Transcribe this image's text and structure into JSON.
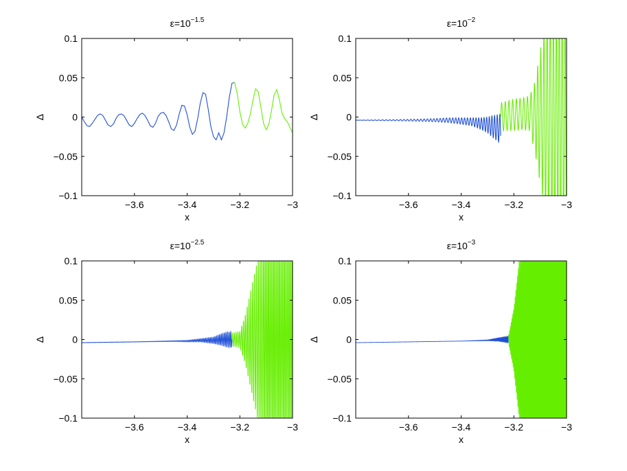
{
  "chart_data": [
    {
      "type": "line",
      "title": "ε=10",
      "title_exponent": "−1.5",
      "xlabel": "x",
      "ylabel": "Δ",
      "xlim": [
        -3.8,
        -3.0
      ],
      "ylim": [
        -0.1,
        0.1
      ],
      "x_ticks": [
        -3.6,
        -3.4,
        -3.2,
        -3.0
      ],
      "x_tick_labels": [
        "−3.6",
        "−3.4",
        "−3.2",
        "−3"
      ],
      "y_ticks": [
        -0.1,
        -0.05,
        0,
        0.05,
        0.1
      ],
      "y_tick_labels": [
        "−0.1",
        "−0.05",
        "0",
        "0.05",
        "0.1"
      ],
      "grid": false,
      "series": [
        {
          "color": "#1f4fd6",
          "x": [
            -3.8,
            -3.79,
            -3.78,
            -3.77,
            -3.76,
            -3.75,
            -3.74,
            -3.73,
            -3.72,
            -3.71,
            -3.7,
            -3.69,
            -3.68,
            -3.67,
            -3.66,
            -3.65,
            -3.64,
            -3.63,
            -3.62,
            -3.61,
            -3.6,
            -3.59,
            -3.58,
            -3.57,
            -3.56,
            -3.55,
            -3.54,
            -3.53,
            -3.52,
            -3.51,
            -3.5,
            -3.49,
            -3.48,
            -3.47,
            -3.46,
            -3.45,
            -3.44,
            -3.43,
            -3.42,
            -3.41,
            -3.4,
            -3.39,
            -3.38,
            -3.37,
            -3.36,
            -3.35,
            -3.34,
            -3.33,
            -3.32,
            -3.31,
            -3.3,
            -3.29,
            -3.28,
            -3.27,
            -3.26,
            -3.25,
            -3.24,
            -3.23,
            -3.22
          ],
          "y": [
            0.0,
            -0.006,
            -0.011,
            -0.012,
            -0.008,
            -0.003,
            0.002,
            0.004,
            0.002,
            -0.004,
            -0.01,
            -0.012,
            -0.009,
            -0.002,
            0.003,
            0.004,
            0.002,
            -0.004,
            -0.01,
            -0.012,
            -0.008,
            -0.002,
            0.003,
            0.005,
            0.002,
            -0.004,
            -0.011,
            -0.013,
            -0.008,
            0.001,
            0.005,
            0.006,
            0.002,
            -0.006,
            -0.015,
            -0.017,
            -0.01,
            0.004,
            0.015,
            0.014,
            0.003,
            -0.013,
            -0.022,
            -0.018,
            -0.002,
            0.018,
            0.031,
            0.029,
            0.01,
            -0.012,
            -0.025,
            -0.029,
            -0.02,
            -0.029,
            -0.02,
            0.0,
            0.025,
            0.043,
            0.044
          ]
        },
        {
          "color": "#66ee00",
          "x": [
            -3.22,
            -3.21,
            -3.2,
            -3.19,
            -3.18,
            -3.17,
            -3.16,
            -3.15,
            -3.14,
            -3.13,
            -3.12,
            -3.11,
            -3.1,
            -3.09,
            -3.08,
            -3.07,
            -3.06,
            -3.05,
            -3.04,
            -3.03,
            -3.02,
            -3.01,
            -3.0
          ],
          "y": [
            0.044,
            0.03,
            0.007,
            -0.009,
            -0.014,
            -0.008,
            0.004,
            0.022,
            0.036,
            0.032,
            0.012,
            -0.008,
            -0.016,
            -0.009,
            0.008,
            0.028,
            0.035,
            0.022,
            0.005,
            -0.002,
            -0.006,
            -0.013,
            -0.02
          ]
        }
      ]
    },
    {
      "type": "line",
      "title": "ε=10",
      "title_exponent": "−2",
      "xlabel": "x",
      "ylabel": "Δ",
      "xlim": [
        -3.8,
        -3.0
      ],
      "ylim": [
        -0.1,
        0.1
      ],
      "x_ticks": [
        -3.6,
        -3.4,
        -3.2,
        -3.0
      ],
      "x_tick_labels": [
        "−3.6",
        "−3.4",
        "−3.2",
        "−3"
      ],
      "y_ticks": [
        -0.1,
        -0.05,
        0,
        0.05,
        0.1
      ],
      "y_tick_labels": [
        "−0.1",
        "−0.05",
        "0",
        "0.05",
        "0.1"
      ],
      "grid": false,
      "series": [
        {
          "color": "#1f4fd6",
          "x": [
            -3.8,
            -3.7,
            -3.6,
            -3.5,
            -3.45,
            -3.4,
            -3.36,
            -3.33,
            -3.3,
            -3.28,
            -3.26,
            -3.25
          ],
          "y": [
            -0.004,
            -0.004,
            -0.004,
            -0.004,
            -0.004,
            -0.005,
            -0.006,
            -0.008,
            -0.01,
            -0.012,
            -0.014,
            -0.016
          ],
          "amplitude": [
            0.0,
            0.0005,
            0.001,
            0.002,
            0.003,
            0.004,
            0.005,
            0.007,
            0.01,
            0.014,
            0.017,
            0.02
          ],
          "wavelength": [
            0.014,
            0.014,
            0.013,
            0.012,
            0.012,
            0.011,
            0.011,
            0.01,
            0.01,
            0.01,
            0.01,
            0.01
          ]
        },
        {
          "color": "#66ee00",
          "x": [
            -3.25,
            -3.22,
            -3.2,
            -3.17,
            -3.14,
            -3.12,
            -3.1,
            -3.08,
            -3.06,
            -3.04,
            -3.02,
            -3.0
          ],
          "y": [
            0.0,
            0.002,
            0.003,
            0.004,
            0.005,
            0.0,
            0.0,
            0.0,
            0.0,
            0.0,
            0.0,
            0.0
          ],
          "amplitude": [
            0.018,
            0.019,
            0.02,
            0.02,
            0.022,
            0.045,
            0.085,
            0.12,
            0.14,
            0.14,
            0.14,
            0.14
          ],
          "wavelength": [
            0.014,
            0.014,
            0.014,
            0.014,
            0.014,
            0.012,
            0.012,
            0.012,
            0.012,
            0.011,
            0.011,
            0.011
          ]
        }
      ]
    },
    {
      "type": "line",
      "title": "ε=10",
      "title_exponent": "−2.5",
      "xlabel": "x",
      "ylabel": "Δ",
      "xlim": [
        -3.8,
        -3.0
      ],
      "ylim": [
        -0.1,
        0.1
      ],
      "x_ticks": [
        -3.6,
        -3.4,
        -3.2,
        -3.0
      ],
      "x_tick_labels": [
        "−3.6",
        "−3.4",
        "−3.2",
        "−3"
      ],
      "y_ticks": [
        -0.1,
        -0.05,
        0,
        0.05,
        0.1
      ],
      "y_tick_labels": [
        "−0.1",
        "−0.05",
        "0",
        "0.05",
        "0.1"
      ],
      "grid": false,
      "series": [
        {
          "color": "#1f4fd6",
          "x": [
            -3.8,
            -3.6,
            -3.45,
            -3.4,
            -3.35,
            -3.3,
            -3.27,
            -3.25,
            -3.23
          ],
          "y": [
            -0.004,
            -0.003,
            -0.002,
            -0.002,
            -0.001,
            -0.001,
            0.0,
            0.0,
            0.0
          ],
          "amplitude": [
            0.0,
            0.0,
            0.0005,
            0.001,
            0.002,
            0.004,
            0.007,
            0.009,
            0.01
          ],
          "wavelength": [
            0.006,
            0.006,
            0.006,
            0.006,
            0.006,
            0.006,
            0.006,
            0.006,
            0.006
          ]
        },
        {
          "color": "#66ee00",
          "x": [
            -3.23,
            -3.2,
            -3.18,
            -3.16,
            -3.14,
            -3.12,
            -3.1,
            -3.05,
            -3.0
          ],
          "y": [
            0.0,
            0.0,
            0.0,
            0.0,
            0.0,
            0.0,
            0.0,
            0.0,
            0.0
          ],
          "amplitude": [
            0.008,
            0.01,
            0.03,
            0.06,
            0.09,
            0.12,
            0.14,
            0.14,
            0.14
          ],
          "wavelength": [
            0.007,
            0.007,
            0.007,
            0.007,
            0.007,
            0.007,
            0.006,
            0.006,
            0.006
          ]
        }
      ]
    },
    {
      "type": "line",
      "title": "ε=10",
      "title_exponent": "−3",
      "xlabel": "x",
      "ylabel": "Δ",
      "xlim": [
        -3.8,
        -3.0
      ],
      "ylim": [
        -0.1,
        0.1
      ],
      "x_ticks": [
        -3.6,
        -3.4,
        -3.2,
        -3.0
      ],
      "x_tick_labels": [
        "−3.6",
        "−3.4",
        "−3.2",
        "−3"
      ],
      "y_ticks": [
        -0.1,
        -0.05,
        0,
        0.05,
        0.1
      ],
      "y_tick_labels": [
        "−0.1",
        "−0.05",
        "0",
        "0.05",
        "0.1"
      ],
      "grid": false,
      "series": [
        {
          "color": "#1f4fd6",
          "x": [
            -3.8,
            -3.6,
            -3.4,
            -3.3,
            -3.26,
            -3.24,
            -3.22
          ],
          "y": [
            -0.004,
            -0.003,
            -0.002,
            -0.001,
            0.0,
            0.0,
            0.0
          ],
          "amplitude": [
            0.0,
            0.0,
            0.0,
            0.0005,
            0.002,
            0.003,
            0.004
          ],
          "wavelength": [
            0.003,
            0.003,
            0.003,
            0.003,
            0.003,
            0.003,
            0.003
          ]
        },
        {
          "color": "#66ee00",
          "x": [
            -3.22,
            -3.2,
            -3.18,
            -3.16,
            -3.14,
            -3.1,
            -3.05,
            -3.02,
            -3.0
          ],
          "y": [
            0.0,
            0.0,
            0.0,
            0.0,
            0.0,
            0.0,
            0.0,
            0.0,
            0.0
          ],
          "amplitude": [
            0.005,
            0.04,
            0.1,
            0.14,
            0.14,
            0.14,
            0.14,
            0.14,
            0.14
          ],
          "wavelength": [
            0.003,
            0.003,
            0.003,
            0.003,
            0.003,
            0.003,
            0.003,
            0.003,
            0.003
          ]
        }
      ]
    }
  ]
}
